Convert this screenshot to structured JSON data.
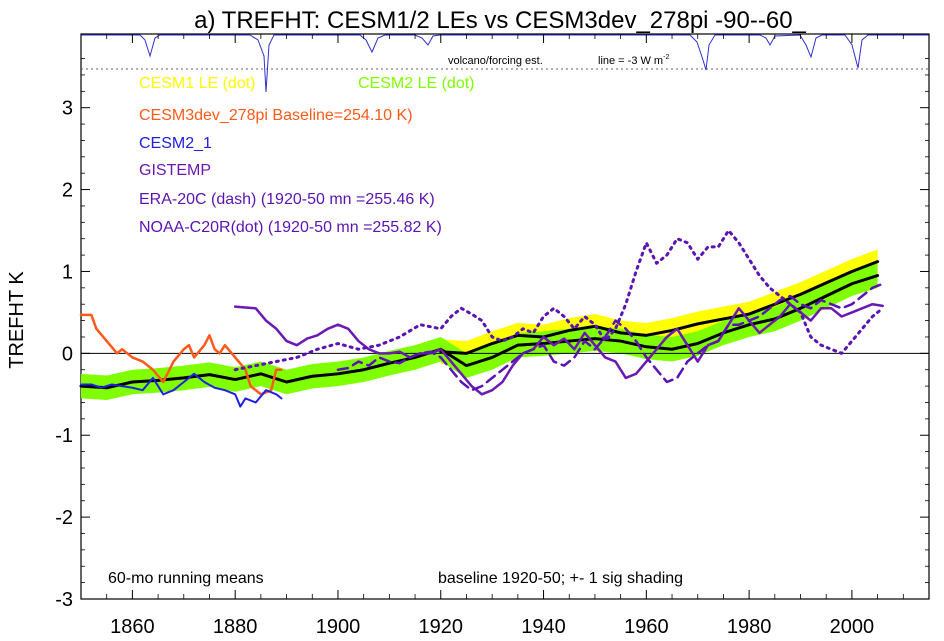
{
  "chart_data": {
    "type": "line",
    "title": "a) TREFHT: CESM1/2 LEs vs CESM3dev_278pi -90--60_",
    "xlabel": "",
    "ylabel": "TREFHT K",
    "xlim": [
      1850,
      2015
    ],
    "ylim": [
      -3,
      3.9
    ],
    "xticks": [
      1860,
      1880,
      1900,
      1920,
      1940,
      1960,
      1980,
      2000
    ],
    "yticks": [
      -3,
      -2,
      -1,
      0,
      1,
      2,
      3
    ],
    "volcano_label": "volcano/forcing est.",
    "volcano_line_label": "line = -3 W m",
    "volcano_line_label_sup": "-2",
    "note_left": "60-mo running means",
    "note_right": "baseline 1920-50; +- 1 sig shading",
    "legend": [
      {
        "text": "CESM1 LE (dot)",
        "color": "#ffff00"
      },
      {
        "text": "CESM2 LE (dot)",
        "color": "#7fff00"
      },
      {
        "text": "CESM3dev_278pi Baseline=254.10 K)",
        "color": "#ff5a1a"
      },
      {
        "text": "CESM2_1",
        "color": "#2020e0"
      },
      {
        "text": "GISTEMP",
        "color": "#6a1ab0"
      },
      {
        "text": "ERA-20C (dash) (1920-50 mn =255.46 K)",
        "color": "#5a14b4"
      },
      {
        "text": "NOAA-C20R(dot) (1920-50 mn =255.82 K)",
        "color": "#5a14b4"
      }
    ],
    "bands": [
      {
        "name": "CESM1 LE",
        "color": "#ffff00",
        "x": [
          1920,
          1925,
          1930,
          1935,
          1940,
          1945,
          1950,
          1955,
          1960,
          1965,
          1970,
          1975,
          1980,
          1985,
          1990,
          1995,
          2000,
          2005
        ],
        "mean": [
          0.02,
          0.0,
          0.12,
          0.22,
          0.2,
          0.28,
          0.33,
          0.25,
          0.22,
          0.28,
          0.36,
          0.42,
          0.48,
          0.6,
          0.72,
          0.86,
          1.0,
          1.12
        ],
        "sd": 0.15
      },
      {
        "name": "CESM2 LE",
        "color": "#7fff00",
        "x": [
          1850,
          1855,
          1860,
          1865,
          1870,
          1875,
          1880,
          1885,
          1890,
          1895,
          1900,
          1905,
          1910,
          1915,
          1920,
          1925,
          1930,
          1935,
          1940,
          1945,
          1950,
          1955,
          1960,
          1965,
          1970,
          1975,
          1980,
          1985,
          1990,
          1995,
          2000,
          2005
        ],
        "mean": [
          -0.4,
          -0.42,
          -0.35,
          -0.33,
          -0.3,
          -0.26,
          -0.32,
          -0.25,
          -0.35,
          -0.28,
          -0.25,
          -0.2,
          -0.12,
          -0.05,
          0.05,
          -0.15,
          -0.05,
          0.1,
          0.12,
          0.15,
          0.18,
          0.15,
          0.08,
          0.05,
          0.12,
          0.25,
          0.35,
          0.42,
          0.55,
          0.7,
          0.85,
          0.95
        ],
        "sd": 0.15
      }
    ],
    "series": [
      {
        "name": "CESM1 LE",
        "color": "#000000",
        "width": 3,
        "dash": "",
        "x": [
          1920,
          1925,
          1930,
          1935,
          1940,
          1945,
          1950,
          1955,
          1960,
          1965,
          1970,
          1975,
          1980,
          1985,
          1990,
          1995,
          2000,
          2005
        ],
        "y": [
          0.02,
          0.0,
          0.12,
          0.22,
          0.2,
          0.28,
          0.33,
          0.25,
          0.22,
          0.28,
          0.36,
          0.42,
          0.48,
          0.6,
          0.72,
          0.86,
          1.0,
          1.12
        ]
      },
      {
        "name": "CESM2 LE",
        "color": "#000000",
        "width": 3,
        "dash": "",
        "x": [
          1850,
          1855,
          1860,
          1865,
          1870,
          1875,
          1880,
          1885,
          1890,
          1895,
          1900,
          1905,
          1910,
          1915,
          1920,
          1925,
          1930,
          1935,
          1940,
          1945,
          1950,
          1955,
          1960,
          1965,
          1970,
          1975,
          1980,
          1985,
          1990,
          1995,
          2000,
          2005
        ],
        "y": [
          -0.4,
          -0.42,
          -0.35,
          -0.33,
          -0.3,
          -0.26,
          -0.32,
          -0.25,
          -0.35,
          -0.28,
          -0.25,
          -0.2,
          -0.12,
          -0.05,
          0.05,
          -0.15,
          -0.05,
          0.1,
          0.12,
          0.15,
          0.18,
          0.15,
          0.08,
          0.05,
          0.12,
          0.25,
          0.35,
          0.42,
          0.55,
          0.7,
          0.85,
          0.95
        ]
      },
      {
        "name": "CESM3dev_278pi",
        "color": "#ff5a1a",
        "width": 2.5,
        "dash": "",
        "x": [
          1850,
          1852,
          1853,
          1855,
          1857,
          1858,
          1860,
          1862,
          1864,
          1866,
          1868,
          1870,
          1871,
          1872,
          1874,
          1875,
          1876,
          1877,
          1878,
          1880,
          1882,
          1883,
          1885,
          1887,
          1888,
          1889
        ],
        "y": [
          0.47,
          0.47,
          0.3,
          0.15,
          0.0,
          0.05,
          -0.05,
          -0.1,
          -0.2,
          -0.35,
          -0.1,
          0.05,
          0.1,
          -0.05,
          0.1,
          0.22,
          0.05,
          0.0,
          0.1,
          -0.05,
          -0.2,
          -0.4,
          -0.5,
          -0.45,
          -0.2,
          -0.2
        ]
      },
      {
        "name": "CESM2_1",
        "color": "#2020e0",
        "width": 2,
        "dash": "",
        "x": [
          1850,
          1852,
          1854,
          1856,
          1858,
          1860,
          1862,
          1864,
          1866,
          1868,
          1870,
          1872,
          1874,
          1876,
          1878,
          1880,
          1881,
          1882,
          1884,
          1886,
          1888,
          1889
        ],
        "y": [
          -0.38,
          -0.38,
          -0.42,
          -0.38,
          -0.4,
          -0.42,
          -0.45,
          -0.3,
          -0.5,
          -0.45,
          -0.35,
          -0.25,
          -0.35,
          -0.42,
          -0.45,
          -0.5,
          -0.65,
          -0.55,
          -0.6,
          -0.45,
          -0.5,
          -0.55
        ]
      },
      {
        "name": "GISTEMP",
        "color": "#6a1ab0",
        "width": 2.5,
        "dash": "",
        "x": [
          1880,
          1882,
          1884,
          1886,
          1888,
          1890,
          1892,
          1894,
          1896,
          1898,
          1900,
          1902,
          1904,
          1906,
          1908,
          1910,
          1912,
          1914,
          1916,
          1918,
          1920,
          1922,
          1924,
          1926,
          1928,
          1930,
          1932,
          1934,
          1936,
          1938,
          1940,
          1942,
          1944,
          1946,
          1948,
          1950,
          1952,
          1954,
          1956,
          1958,
          1960,
          1962,
          1964,
          1966,
          1968,
          1970,
          1972,
          1974,
          1976,
          1978,
          1980,
          1982,
          1984,
          1986,
          1988,
          1990,
          1992,
          1994,
          1996,
          1998,
          2000,
          2002,
          2004,
          2006
        ],
        "y": [
          0.57,
          0.56,
          0.55,
          0.4,
          0.3,
          0.15,
          0.1,
          0.18,
          0.22,
          0.3,
          0.35,
          0.3,
          0.15,
          0.05,
          0.0,
          0.0,
          0.02,
          -0.05,
          0.0,
          0.0,
          0.05,
          -0.1,
          -0.25,
          -0.4,
          -0.5,
          -0.45,
          -0.35,
          -0.15,
          0.0,
          0.05,
          0.2,
          0.1,
          0.18,
          0.05,
          0.25,
          0.1,
          -0.05,
          -0.1,
          -0.3,
          -0.25,
          -0.1,
          0.05,
          0.2,
          0.3,
          0.1,
          -0.1,
          0.1,
          0.15,
          0.35,
          0.55,
          0.4,
          0.25,
          0.35,
          0.45,
          0.6,
          0.5,
          0.4,
          0.55,
          0.55,
          0.45,
          0.5,
          0.55,
          0.6,
          0.58
        ]
      },
      {
        "name": "ERA-20C",
        "color": "#5a14b4",
        "width": 2.5,
        "dash": "10,6",
        "x": [
          1900,
          1902,
          1904,
          1906,
          1908,
          1910,
          1912,
          1914,
          1916,
          1918,
          1920,
          1922,
          1924,
          1926,
          1928,
          1930,
          1932,
          1934,
          1936,
          1938,
          1940,
          1942,
          1944,
          1946,
          1948,
          1950,
          1952,
          1954,
          1956,
          1958,
          1960,
          1962,
          1964,
          1966,
          1968,
          1970,
          1972,
          1974,
          1976,
          1978,
          1980,
          1982,
          1984,
          1986,
          1988,
          1990,
          1992,
          1994,
          1996,
          1998,
          2000,
          2002,
          2004,
          2006
        ],
        "y": [
          -0.2,
          -0.18,
          -0.1,
          -0.15,
          -0.05,
          -0.1,
          -0.12,
          -0.05,
          0.0,
          0.02,
          -0.05,
          -0.2,
          -0.35,
          -0.45,
          -0.4,
          -0.3,
          -0.2,
          -0.1,
          0.0,
          0.05,
          0.1,
          -0.1,
          -0.15,
          -0.05,
          0.15,
          0.05,
          0.2,
          0.4,
          0.3,
          0.15,
          -0.05,
          -0.2,
          -0.35,
          -0.3,
          -0.1,
          0.0,
          0.1,
          0.15,
          0.35,
          0.35,
          0.4,
          0.45,
          0.55,
          0.65,
          0.7,
          0.6,
          0.55,
          0.65,
          0.6,
          0.55,
          0.6,
          0.7,
          0.8,
          0.85
        ]
      },
      {
        "name": "NOAA-C20R",
        "color": "#5a14b4",
        "width": 3,
        "dash": "2,5",
        "x": [
          1880,
          1884,
          1888,
          1892,
          1896,
          1900,
          1904,
          1908,
          1912,
          1916,
          1920,
          1922,
          1924,
          1926,
          1928,
          1930,
          1932,
          1934,
          1936,
          1938,
          1940,
          1942,
          1944,
          1946,
          1948,
          1950,
          1952,
          1954,
          1956,
          1958,
          1960,
          1962,
          1964,
          1966,
          1968,
          1970,
          1972,
          1974,
          1976,
          1978,
          1980,
          1982,
          1984,
          1986,
          1988,
          1990,
          1992,
          1994,
          1996,
          1998,
          2000,
          2002,
          2004,
          2006
        ],
        "y": [
          -0.2,
          -0.15,
          -0.1,
          -0.05,
          0.05,
          0.12,
          0.05,
          0.1,
          0.2,
          0.35,
          0.3,
          0.45,
          0.55,
          0.48,
          0.4,
          0.2,
          0.15,
          0.2,
          0.3,
          0.25,
          0.45,
          0.55,
          0.45,
          0.3,
          0.45,
          0.35,
          0.15,
          0.3,
          0.6,
          1.0,
          1.35,
          1.1,
          1.2,
          1.4,
          1.35,
          1.15,
          1.3,
          1.3,
          1.5,
          1.35,
          1.15,
          0.95,
          0.8,
          0.7,
          0.6,
          0.5,
          0.2,
          0.1,
          0.05,
          0.0,
          0.15,
          0.3,
          0.45,
          0.55
        ]
      }
    ]
  }
}
